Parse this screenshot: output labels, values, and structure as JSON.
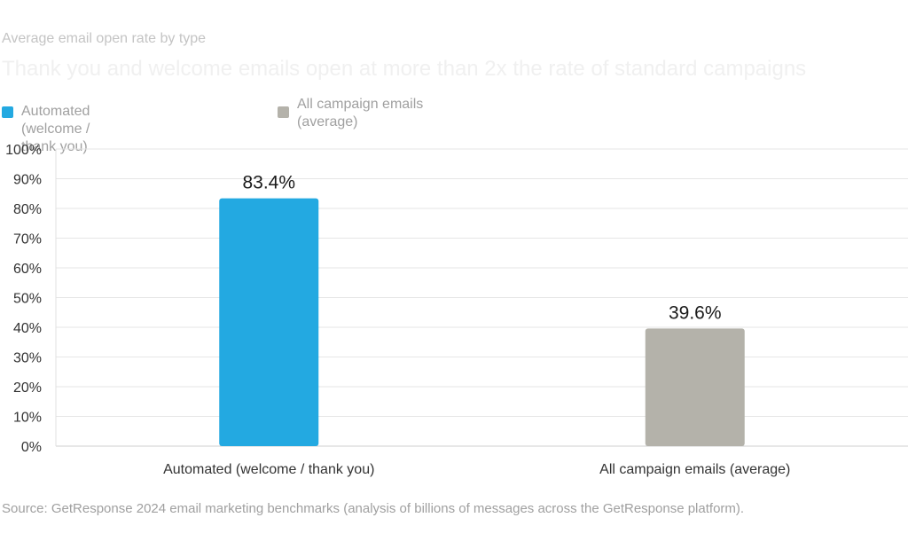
{
  "eyebrow": "Average email open rate by type",
  "headline": "Thank you and welcome emails open at more than 2x the rate of standard campaigns",
  "legend": [
    {
      "label": "Automated (welcome / thank you)",
      "color": "#23a9e1"
    },
    {
      "label": "All campaign emails (average)",
      "color": "#b4b2aa"
    }
  ],
  "chart_data": {
    "type": "bar",
    "title": "Average email open rate by type",
    "subtitle": "Thank you and welcome emails open at more than 2x the rate of standard campaigns",
    "categories": [
      "Automated (welcome / thank you)",
      "All campaign emails (average)"
    ],
    "values": [
      83.4,
      39.6
    ],
    "data_labels": [
      "83.4%",
      "39.6%"
    ],
    "colors": [
      "#23a9e1",
      "#b4b2aa"
    ],
    "ylim": [
      0,
      100
    ],
    "yticks": [
      "0%",
      "10%",
      "20%",
      "30%",
      "40%",
      "50%",
      "60%",
      "70%",
      "80%",
      "90%",
      "100%"
    ],
    "grid": true,
    "legend_position": "top-left"
  },
  "source": "Source: GetResponse 2024 email marketing benchmarks (analysis of billions of messages across the GetResponse platform)."
}
